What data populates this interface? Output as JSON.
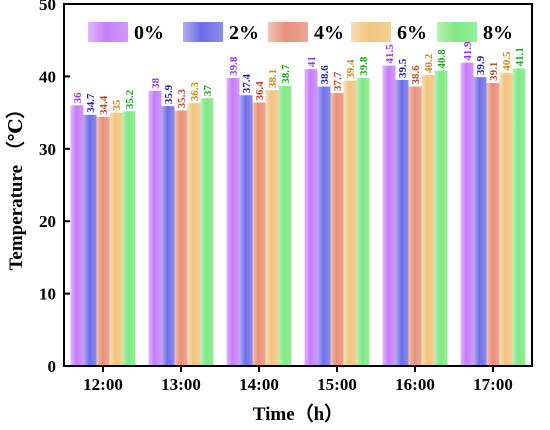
{
  "chart_data": {
    "type": "bar",
    "xlabel": "Time（h）",
    "ylabel": "Temperature （℃）",
    "categories": [
      "12:00",
      "13:00",
      "14:00",
      "15:00",
      "16:00",
      "17:00"
    ],
    "ylim": [
      0,
      50
    ],
    "yticks": [
      "0",
      "10",
      "20",
      "30",
      "40",
      "50"
    ],
    "legend_position": "top",
    "series": [
      {
        "name": "0%",
        "values": [
          36,
          38,
          39.8,
          41,
          41.5,
          41.9
        ],
        "color": "#c77dfc",
        "label_color": "#9b35e0",
        "labels": [
          "36",
          "38",
          "39.8",
          "41",
          "41.5",
          "41.9"
        ]
      },
      {
        "name": "2%",
        "values": [
          34.7,
          35.9,
          37.4,
          38.6,
          39.5,
          39.9
        ],
        "color": "#6d6ee8",
        "label_color": "#1f1fb0",
        "labels": [
          "34.7",
          "35.9",
          "37.4",
          "38.6",
          "39.5",
          "39.9"
        ]
      },
      {
        "name": "4%",
        "values": [
          34.4,
          35.3,
          36.4,
          37.7,
          38.6,
          39.1
        ],
        "color": "#e8907a",
        "label_color": "#b54a2e",
        "labels": [
          "34.4",
          "35.3",
          "36.4",
          "37.7",
          "38.6",
          "39.1"
        ]
      },
      {
        "name": "6%",
        "values": [
          35,
          36.3,
          38.1,
          39.4,
          40.2,
          40.5
        ],
        "color": "#f2c47e",
        "label_color": "#c98b16",
        "labels": [
          "35",
          "36.3",
          "38.1",
          "39.4",
          "40.2",
          "40.5"
        ]
      },
      {
        "name": "8%",
        "values": [
          35.2,
          37,
          38.7,
          39.8,
          40.8,
          41.1
        ],
        "color": "#7ee883",
        "label_color": "#1aa81f",
        "labels": [
          "35.2",
          "37",
          "38.7",
          "39.8",
          "40.8",
          "41.1"
        ]
      }
    ]
  }
}
